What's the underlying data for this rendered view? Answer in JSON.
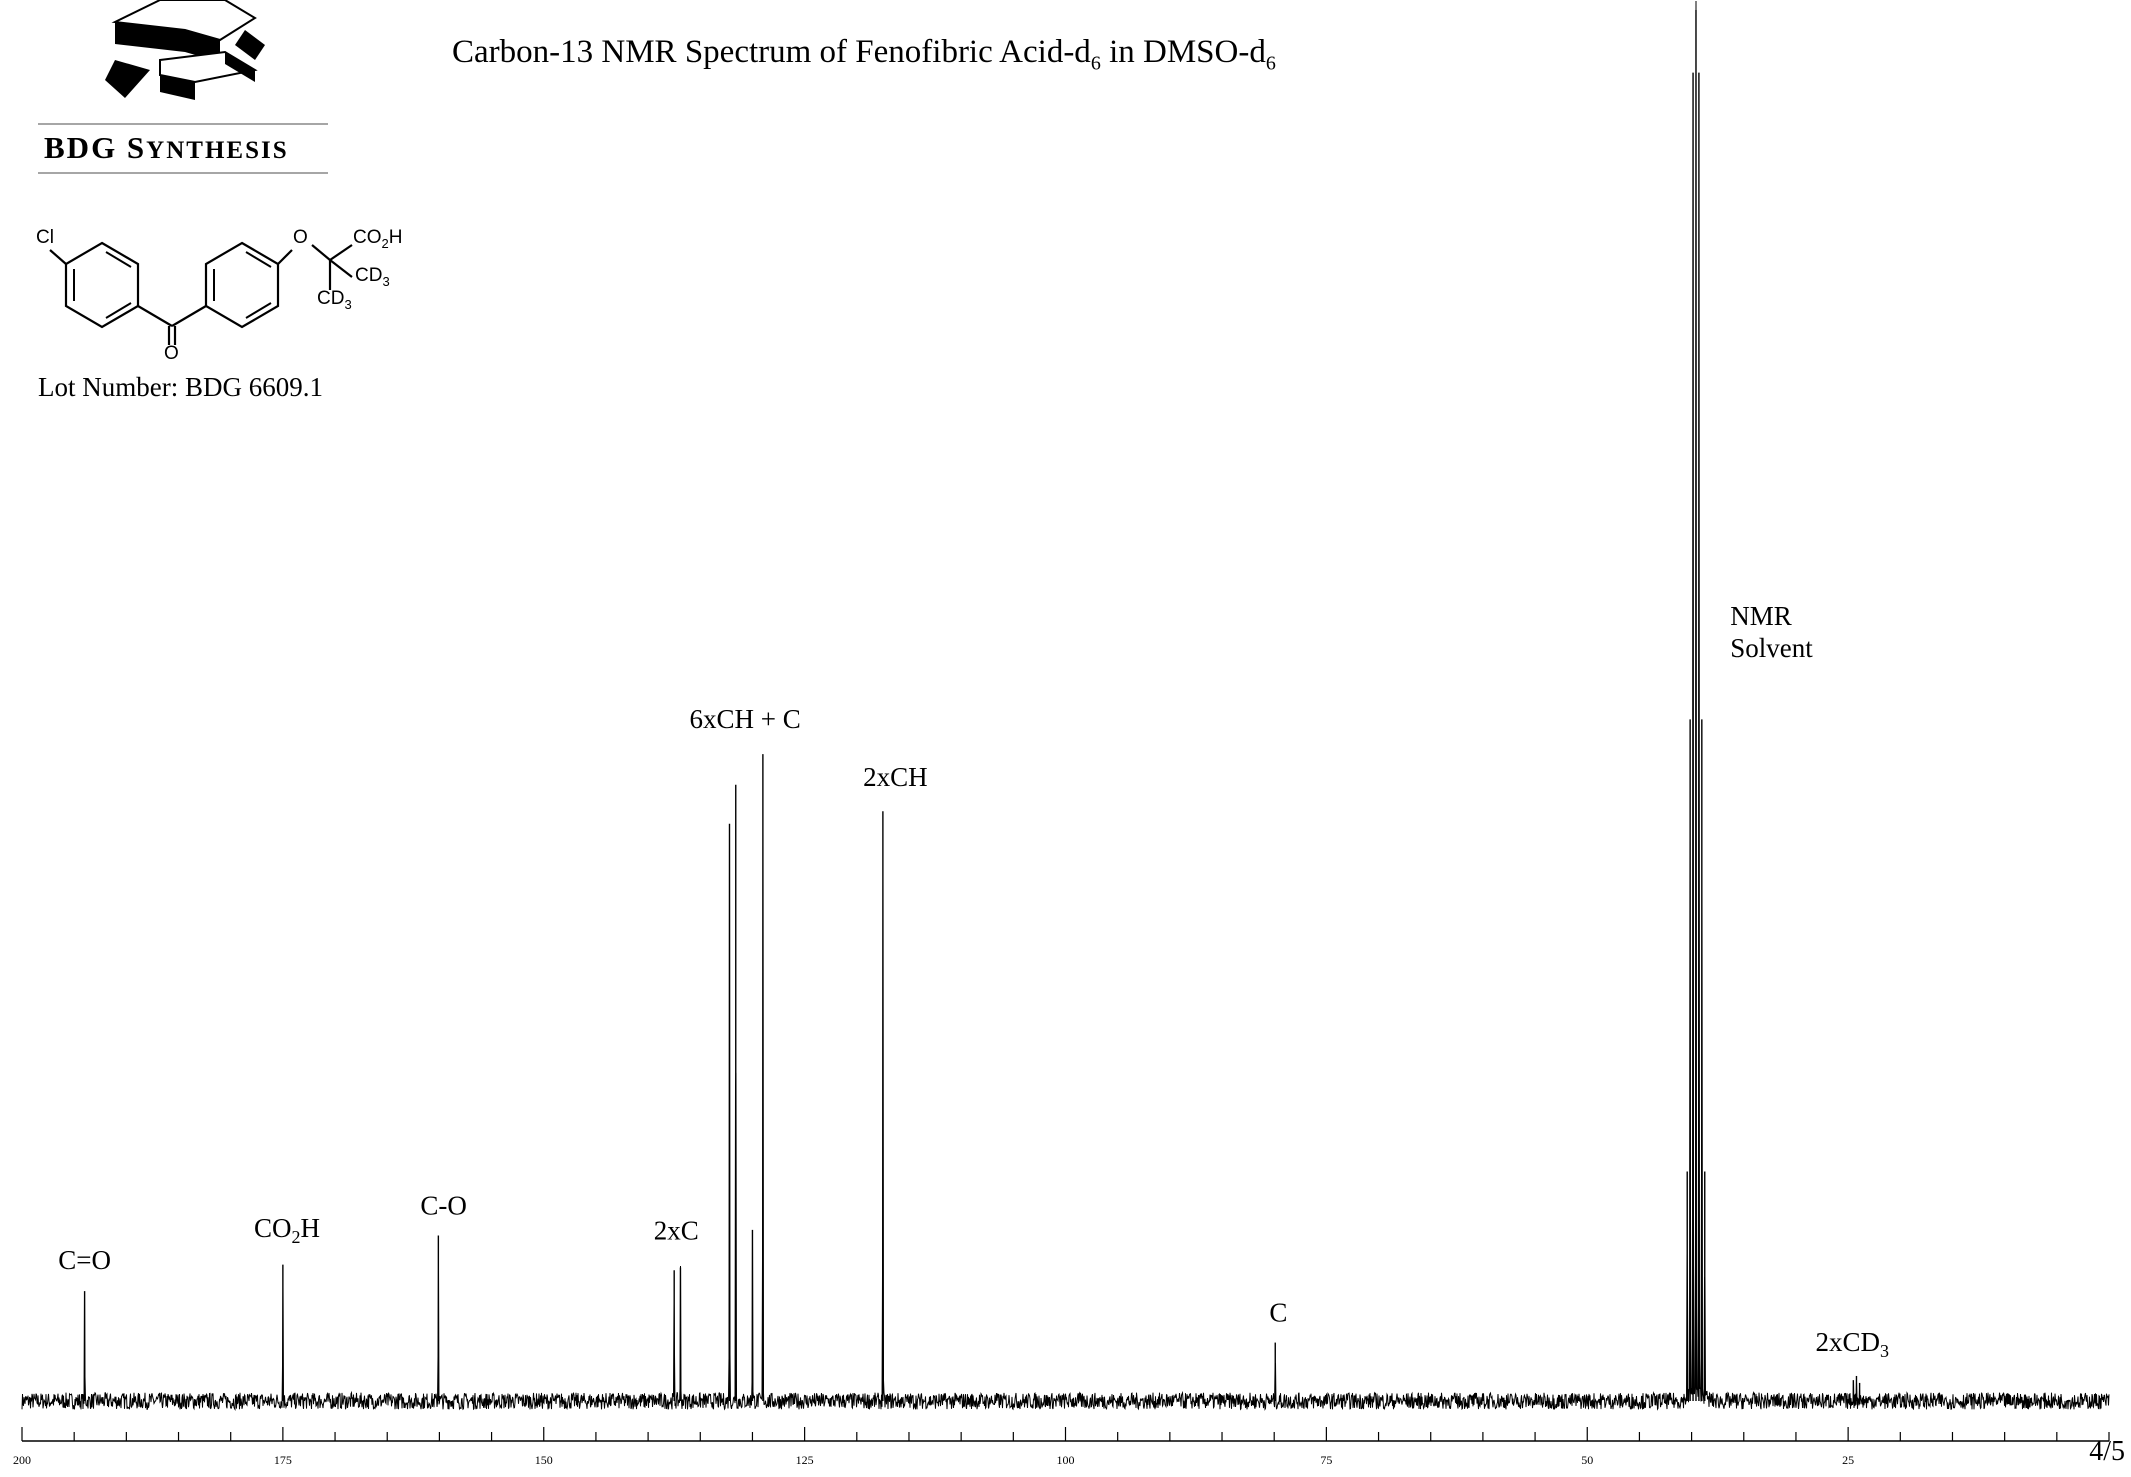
{
  "header": {
    "title_main": "Carbon-13 NMR Spectrum of Fenofibric Acid-d",
    "title_sub1": "6",
    "title_mid": " in DMSO-d",
    "title_sub2": "6",
    "company_first": "BDG S",
    "company_rest": "YNTHESIS",
    "lot_number": "Lot Number: BDG 6609.1",
    "page_label": "4/5"
  },
  "structure": {
    "cl": "Cl",
    "o_ether": "O",
    "o_carbonyl": "O",
    "co2h": "CO",
    "co2h_sub": "2",
    "co2h_h": "H",
    "cd3_a": "CD",
    "cd3_a_sub": "3",
    "cd3_b": "CD",
    "cd3_b_sub": "3"
  },
  "chart_data": {
    "type": "line",
    "title": "Carbon-13 NMR Spectrum of Fenofibric Acid-d6 in DMSO-d6",
    "xlabel": "",
    "ylabel": "",
    "xlim": [
      200,
      0
    ],
    "x_reversed": true,
    "ylim": [
      0,
      1
    ],
    "grid": false,
    "x_ticks": [
      200,
      175,
      150,
      125,
      100,
      75,
      50,
      25
    ],
    "minor_tick_step": 5,
    "peaks": [
      {
        "ppm": 194.0,
        "height": 0.079
      },
      {
        "ppm": 175.0,
        "height": 0.098
      },
      {
        "ppm": 160.1,
        "height": 0.119
      },
      {
        "ppm": 137.5,
        "height": 0.094
      },
      {
        "ppm": 136.9,
        "height": 0.096
      },
      {
        "ppm": 132.2,
        "height": 0.415
      },
      {
        "ppm": 131.6,
        "height": 0.443
      },
      {
        "ppm": 130.0,
        "height": 0.123
      },
      {
        "ppm": 129.0,
        "height": 0.465
      },
      {
        "ppm": 117.5,
        "height": 0.424
      },
      {
        "ppm": 79.9,
        "height": 0.042
      },
      {
        "ppm": 24.5,
        "height": 0.015
      },
      {
        "ppm": 24.2,
        "height": 0.018
      },
      {
        "ppm": 23.9,
        "height": 0.013
      }
    ],
    "solvent_multiplet": [
      {
        "ppm": 40.42,
        "height": 0.165
      },
      {
        "ppm": 40.14,
        "height": 0.49
      },
      {
        "ppm": 39.86,
        "height": 0.955
      },
      {
        "ppm": 39.58,
        "height": 1.0
      },
      {
        "ppm": 39.3,
        "height": 0.955
      },
      {
        "ppm": 39.02,
        "height": 0.49
      },
      {
        "ppm": 38.74,
        "height": 0.165
      }
    ],
    "annotations": [
      {
        "text": "C=O",
        "ppm": 194.0,
        "height": 0.095
      },
      {
        "text": "CO2H",
        "ppm": 174.6,
        "height": 0.118
      },
      {
        "text": "C-O",
        "ppm": 159.6,
        "height": 0.134
      },
      {
        "text": "2xC",
        "ppm": 137.3,
        "height": 0.116
      },
      {
        "text": "6xCH + C",
        "ppm": 130.7,
        "height": 0.484
      },
      {
        "text": "2xCH",
        "ppm": 116.3,
        "height": 0.442
      },
      {
        "text": "C",
        "ppm": 79.6,
        "height": 0.057
      },
      {
        "text": "NMR Solvent",
        "ppm": 36.3,
        "height": 0.558
      },
      {
        "text": "2xCD3",
        "ppm": 24.6,
        "height": 0.036
      }
    ]
  }
}
